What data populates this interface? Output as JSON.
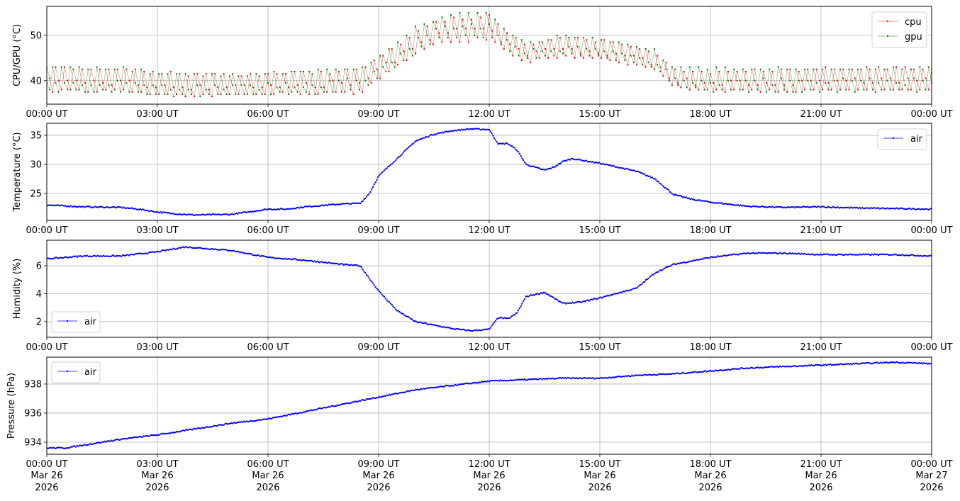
{
  "chart_data": [
    {
      "type": "line",
      "ylabel": "CPU/GPU (°C)",
      "xlim_hours": [
        0,
        24
      ],
      "ylim": [
        34.8,
        56.4
      ],
      "yticks": [
        40,
        50
      ],
      "grid": true,
      "legend": "upper-right",
      "series": [
        {
          "name": "cpu",
          "color": "#ff0000",
          "kind": "envelope",
          "hours": [
            0,
            2,
            3,
            5,
            8.5,
            9,
            9.5,
            10,
            10.5,
            11,
            12,
            12.5,
            13,
            14,
            15,
            16,
            16.5,
            17,
            18,
            21,
            24
          ],
          "low": [
            37.5,
            37.5,
            36.5,
            36.5,
            37.2,
            40,
            43,
            45.5,
            48,
            48.5,
            49,
            46,
            44,
            45,
            44.5,
            43,
            42,
            38.5,
            37.5,
            37.5,
            37.5
          ],
          "high": [
            43,
            43,
            42,
            41.5,
            42.5,
            45,
            48,
            51,
            53,
            54,
            54.5,
            51,
            48,
            50,
            49,
            47.5,
            46.5,
            42.5,
            42,
            43,
            43
          ]
        },
        {
          "name": "gpu",
          "color": "#008000",
          "kind": "envelope",
          "hours": [
            0,
            2,
            3,
            5,
            8.5,
            9,
            9.5,
            10,
            10.5,
            11,
            12,
            12.5,
            13,
            14,
            15,
            16,
            16.5,
            17,
            18,
            21,
            24
          ],
          "low": [
            37.5,
            37.5,
            36.5,
            36.5,
            37.5,
            40.5,
            43.5,
            46,
            48.5,
            49.5,
            49.5,
            46.5,
            44.5,
            45.5,
            45,
            43.5,
            42.5,
            39,
            37.5,
            37.5,
            37.5
          ],
          "high": [
            43.5,
            43,
            42,
            41.5,
            43,
            45.5,
            48.5,
            52,
            53.5,
            55,
            55,
            51.5,
            48.5,
            50.5,
            49.5,
            48,
            47,
            43,
            43,
            43,
            43
          ]
        }
      ]
    },
    {
      "type": "line",
      "ylabel": "Temperature (°C)",
      "xlim_hours": [
        0,
        24
      ],
      "ylim": [
        20.37,
        37.07
      ],
      "yticks": [
        25,
        30,
        35
      ],
      "grid": true,
      "legend": "upper-right",
      "series": [
        {
          "name": "air",
          "color": "#0000ff",
          "hours": [
            0,
            1,
            2,
            2.5,
            3,
            3.5,
            4,
            5,
            6,
            6.5,
            7,
            8,
            8.5,
            8.75,
            9,
            9.5,
            10,
            10.5,
            11,
            11.5,
            12,
            12.25,
            12.5,
            12.75,
            13,
            13.5,
            13.75,
            14,
            14.25,
            15,
            15.5,
            16,
            16.5,
            17,
            17.5,
            18,
            19,
            20,
            21,
            22,
            23,
            24
          ],
          "values": [
            23,
            22.7,
            22.6,
            22.3,
            21.8,
            21.5,
            21.3,
            21.4,
            22.3,
            22.3,
            22.7,
            23.2,
            23.3,
            25,
            28,
            31,
            34,
            35.2,
            35.8,
            36.1,
            36,
            33.5,
            33.6,
            32.5,
            30,
            29,
            29.5,
            30.5,
            31,
            30.2,
            29.5,
            28.8,
            27.5,
            24.8,
            24,
            23.5,
            22.8,
            22.6,
            22.7,
            22.5,
            22.4,
            22.3
          ]
        }
      ]
    },
    {
      "type": "line",
      "ylabel": "Humidity (%)",
      "xlim_hours": [
        0,
        24
      ],
      "ylim": [
        0.88,
        7.83
      ],
      "yticks": [
        2,
        4,
        6
      ],
      "grid": true,
      "legend": "lower-left",
      "series": [
        {
          "name": "air",
          "color": "#0000ff",
          "hours": [
            0,
            1,
            2,
            3,
            3.75,
            5,
            6,
            7,
            8,
            8.5,
            9,
            9.5,
            10,
            11,
            11.5,
            12,
            12.25,
            12.5,
            12.75,
            13,
            13.5,
            14,
            14.5,
            15,
            16,
            16.5,
            17,
            18,
            19,
            20,
            21,
            22,
            23,
            24
          ],
          "values": [
            6.5,
            6.7,
            6.7,
            7.0,
            7.35,
            7.1,
            6.6,
            6.4,
            6.1,
            6.0,
            4.2,
            2.8,
            2.0,
            1.5,
            1.35,
            1.45,
            2.3,
            2.2,
            2.6,
            3.8,
            4.1,
            3.3,
            3.4,
            3.7,
            4.4,
            5.5,
            6.1,
            6.6,
            6.9,
            6.9,
            6.8,
            6.8,
            6.8,
            6.7
          ]
        }
      ]
    },
    {
      "type": "line",
      "ylabel": "Pressure (hPa)",
      "xlim_hours": [
        0,
        24
      ],
      "ylim": [
        933.17,
        939.85
      ],
      "yticks": [
        934,
        936,
        938
      ],
      "grid": true,
      "legend": "upper-left",
      "series": [
        {
          "name": "air",
          "color": "#0000ff",
          "hours": [
            0,
            0.5,
            1,
            2,
            3,
            4,
            5,
            6,
            7,
            8,
            9,
            10,
            11,
            12,
            13,
            14,
            15,
            16,
            17,
            18,
            19,
            20,
            21,
            22,
            23,
            24
          ],
          "values": [
            933.6,
            933.6,
            933.8,
            934.2,
            934.5,
            934.9,
            935.3,
            935.6,
            936.1,
            936.6,
            937.1,
            937.6,
            937.9,
            938.2,
            938.3,
            938.4,
            938.4,
            938.6,
            938.7,
            938.9,
            939.1,
            939.2,
            939.3,
            939.4,
            939.5,
            939.4
          ]
        }
      ]
    }
  ],
  "xticks": {
    "labels": [
      "00:00 UT",
      "03:00 UT",
      "06:00 UT",
      "09:00 UT",
      "12:00 UT",
      "15:00 UT",
      "18:00 UT",
      "21:00 UT",
      "00:00 UT"
    ],
    "dates": [
      "Mar 26",
      "Mar 26",
      "Mar 26",
      "Mar 26",
      "Mar 26",
      "Mar 26",
      "Mar 26",
      "Mar 26",
      "Mar 27"
    ],
    "years": [
      "2026",
      "2026",
      "2026",
      "2026",
      "2026",
      "2026",
      "2026",
      "2026",
      "2026"
    ]
  }
}
